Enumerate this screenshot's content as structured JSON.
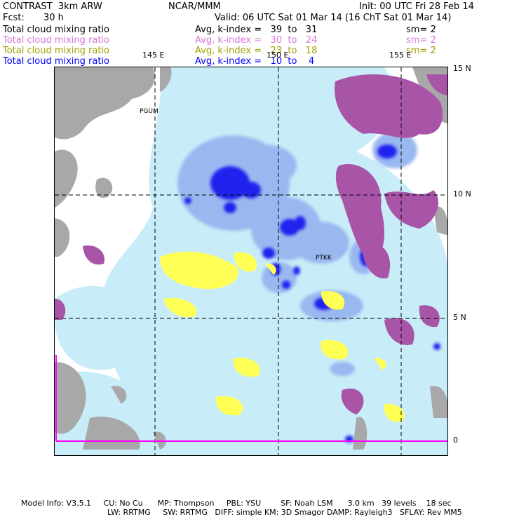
{
  "header": {
    "model": "CONTRAST  3km ARW",
    "org": "NCAR/MMM",
    "init": "Init: 00 UTC Fri 28 Feb 14",
    "fcst_label": "Fcst:",
    "fcst_value": "30 h",
    "valid": "Valid: 06 UTC Sat 01 Mar 14 (16 ChT Sat 01 Mar 14)"
  },
  "legend": [
    {
      "name": "Total cloud mixing ratio",
      "range": "Avg, k-index =   39  to   31",
      "sm": "sm= 2",
      "color": "#000000"
    },
    {
      "name": "Total cloud mixing ratio",
      "range": "Avg, k-index =   30  to   24",
      "sm": "sm= 2",
      "color": "#d878d8"
    },
    {
      "name": "Total cloud mixing ratio",
      "range": "Avg, k-index =   23  to   18",
      "sm": "sm= 2",
      "color": "#a0a000"
    },
    {
      "name": "Total cloud mixing ratio",
      "range": "Avg, k-index =   10  to    4",
      "sm": "",
      "color": "#0000ff"
    }
  ],
  "map": {
    "lon_labels": [
      "145 E",
      "150 E",
      "155 E"
    ],
    "lat_labels": [
      "15 N",
      "10 N",
      "5 N",
      "0"
    ],
    "stations": [
      "PGUM",
      "PTKK"
    ],
    "colors": {
      "land": "#a8a8a8",
      "layer_high": "#a855a8",
      "layer_mid": "#ffff55",
      "layer_low_light": "#c8ecf8",
      "layer_low_mid": "#9ab8f0",
      "layer_low_dark": "#2222ee",
      "equator_line": "#ff00ff"
    }
  },
  "footer": {
    "line1": "Model Info: V3.5.1     CU: No Cu      MP: Thompson     PBL: YSU        SF: Noah LSM      3.0 km   39 levels    18 sec",
    "line2": "LW: RRTMG     SW: RRTMG   DIFF: simple KM: 3D Smagor DAMP: Rayleigh3   SFLAY: Rev MM5"
  }
}
